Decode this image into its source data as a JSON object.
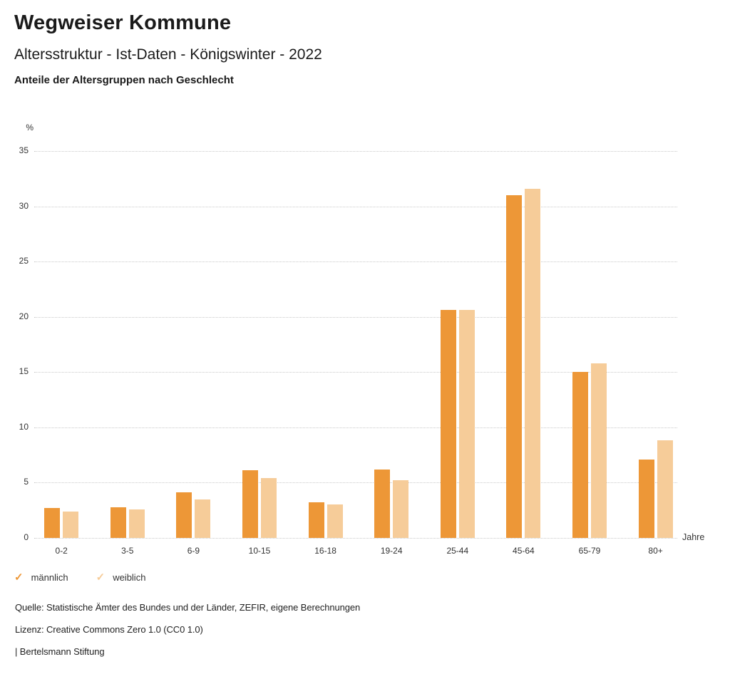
{
  "header": {
    "title": "Wegweiser Kommune",
    "subtitle": "Altersstruktur - Ist-Daten - Königswinter - 2022",
    "caption": "Anteile der Altersgruppen nach Geschlecht"
  },
  "chart_data": {
    "type": "bar",
    "title": "Anteile der Altersgruppen nach Geschlecht",
    "xlabel": "Jahre",
    "ylabel": "%",
    "categories": [
      "0-2",
      "3-5",
      "6-9",
      "10-15",
      "16-18",
      "19-24",
      "25-44",
      "45-64",
      "65-79",
      "80+"
    ],
    "series": [
      {
        "name": "männlich",
        "color": "#ED9737",
        "values": [
          2.7,
          2.8,
          4.1,
          6.1,
          3.2,
          6.2,
          20.6,
          31.0,
          15.0,
          7.1
        ]
      },
      {
        "name": "weiblich",
        "color": "#F6CC99",
        "values": [
          2.4,
          2.6,
          3.5,
          5.4,
          3.0,
          5.2,
          20.6,
          31.6,
          15.8,
          8.8
        ]
      }
    ],
    "ylim": [
      0,
      35
    ],
    "ytick_step": 5,
    "grid": "horizontal-dotted",
    "gridline_color": "#c9c9c9",
    "legend_position": "bottom-left",
    "legend_check_icon": "✓"
  },
  "footer": {
    "source": "Quelle: Statistische Ämter des Bundes und der Länder, ZEFIR, eigene Berechnungen",
    "license": "Lizenz: Creative Commons Zero 1.0 (CC0 1.0)",
    "brand": "| Bertelsmann Stiftung"
  }
}
